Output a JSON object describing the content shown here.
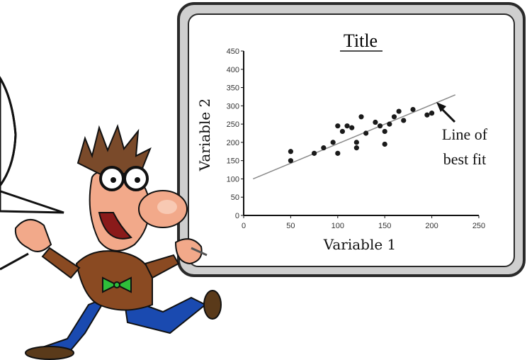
{
  "chart_data": {
    "type": "scatter",
    "title": "Title",
    "xlabel": "Variable 1",
    "ylabel": "Variable 2",
    "xlim": [
      0,
      250
    ],
    "ylim": [
      0,
      450
    ],
    "x_ticks": [
      0,
      50,
      100,
      150,
      200,
      250
    ],
    "y_ticks": [
      0,
      50,
      100,
      150,
      200,
      250,
      300,
      350,
      400,
      450
    ],
    "grid": false,
    "series": [
      {
        "points": [
          [
            50,
            175
          ],
          [
            50,
            150
          ],
          [
            75,
            170
          ],
          [
            85,
            185
          ],
          [
            95,
            200
          ],
          [
            100,
            245
          ],
          [
            100,
            170
          ],
          [
            105,
            230
          ],
          [
            110,
            245
          ],
          [
            115,
            240
          ],
          [
            120,
            200
          ],
          [
            120,
            185
          ],
          [
            125,
            270
          ],
          [
            130,
            225
          ],
          [
            140,
            255
          ],
          [
            145,
            245
          ],
          [
            150,
            230
          ],
          [
            150,
            195
          ],
          [
            155,
            250
          ],
          [
            160,
            270
          ],
          [
            165,
            285
          ],
          [
            170,
            260
          ],
          [
            180,
            290
          ],
          [
            195,
            275
          ],
          [
            200,
            280
          ]
        ]
      }
    ],
    "trendline": {
      "x": [
        10,
        225
      ],
      "y": [
        100,
        330
      ]
    },
    "annotations": [
      {
        "text": "Line of best fit",
        "lines": [
          "Line of",
          "best fit"
        ]
      }
    ]
  },
  "colors": {
    "board_frame": "#c8c8c8",
    "board_border": "#2a2a2a",
    "trendline": "#8a8a8a",
    "points": "#1a1a1a",
    "skin": "#f2a98a",
    "hair": "#7a4a2a",
    "jacket": "#8a4a22",
    "pants": "#1a4ab0",
    "bowtie": "#2fbf3a"
  },
  "icons": {
    "character": "professor-cartoon-icon",
    "speech_bubble": "speech-bubble-icon",
    "arrow": "arrow-icon"
  }
}
